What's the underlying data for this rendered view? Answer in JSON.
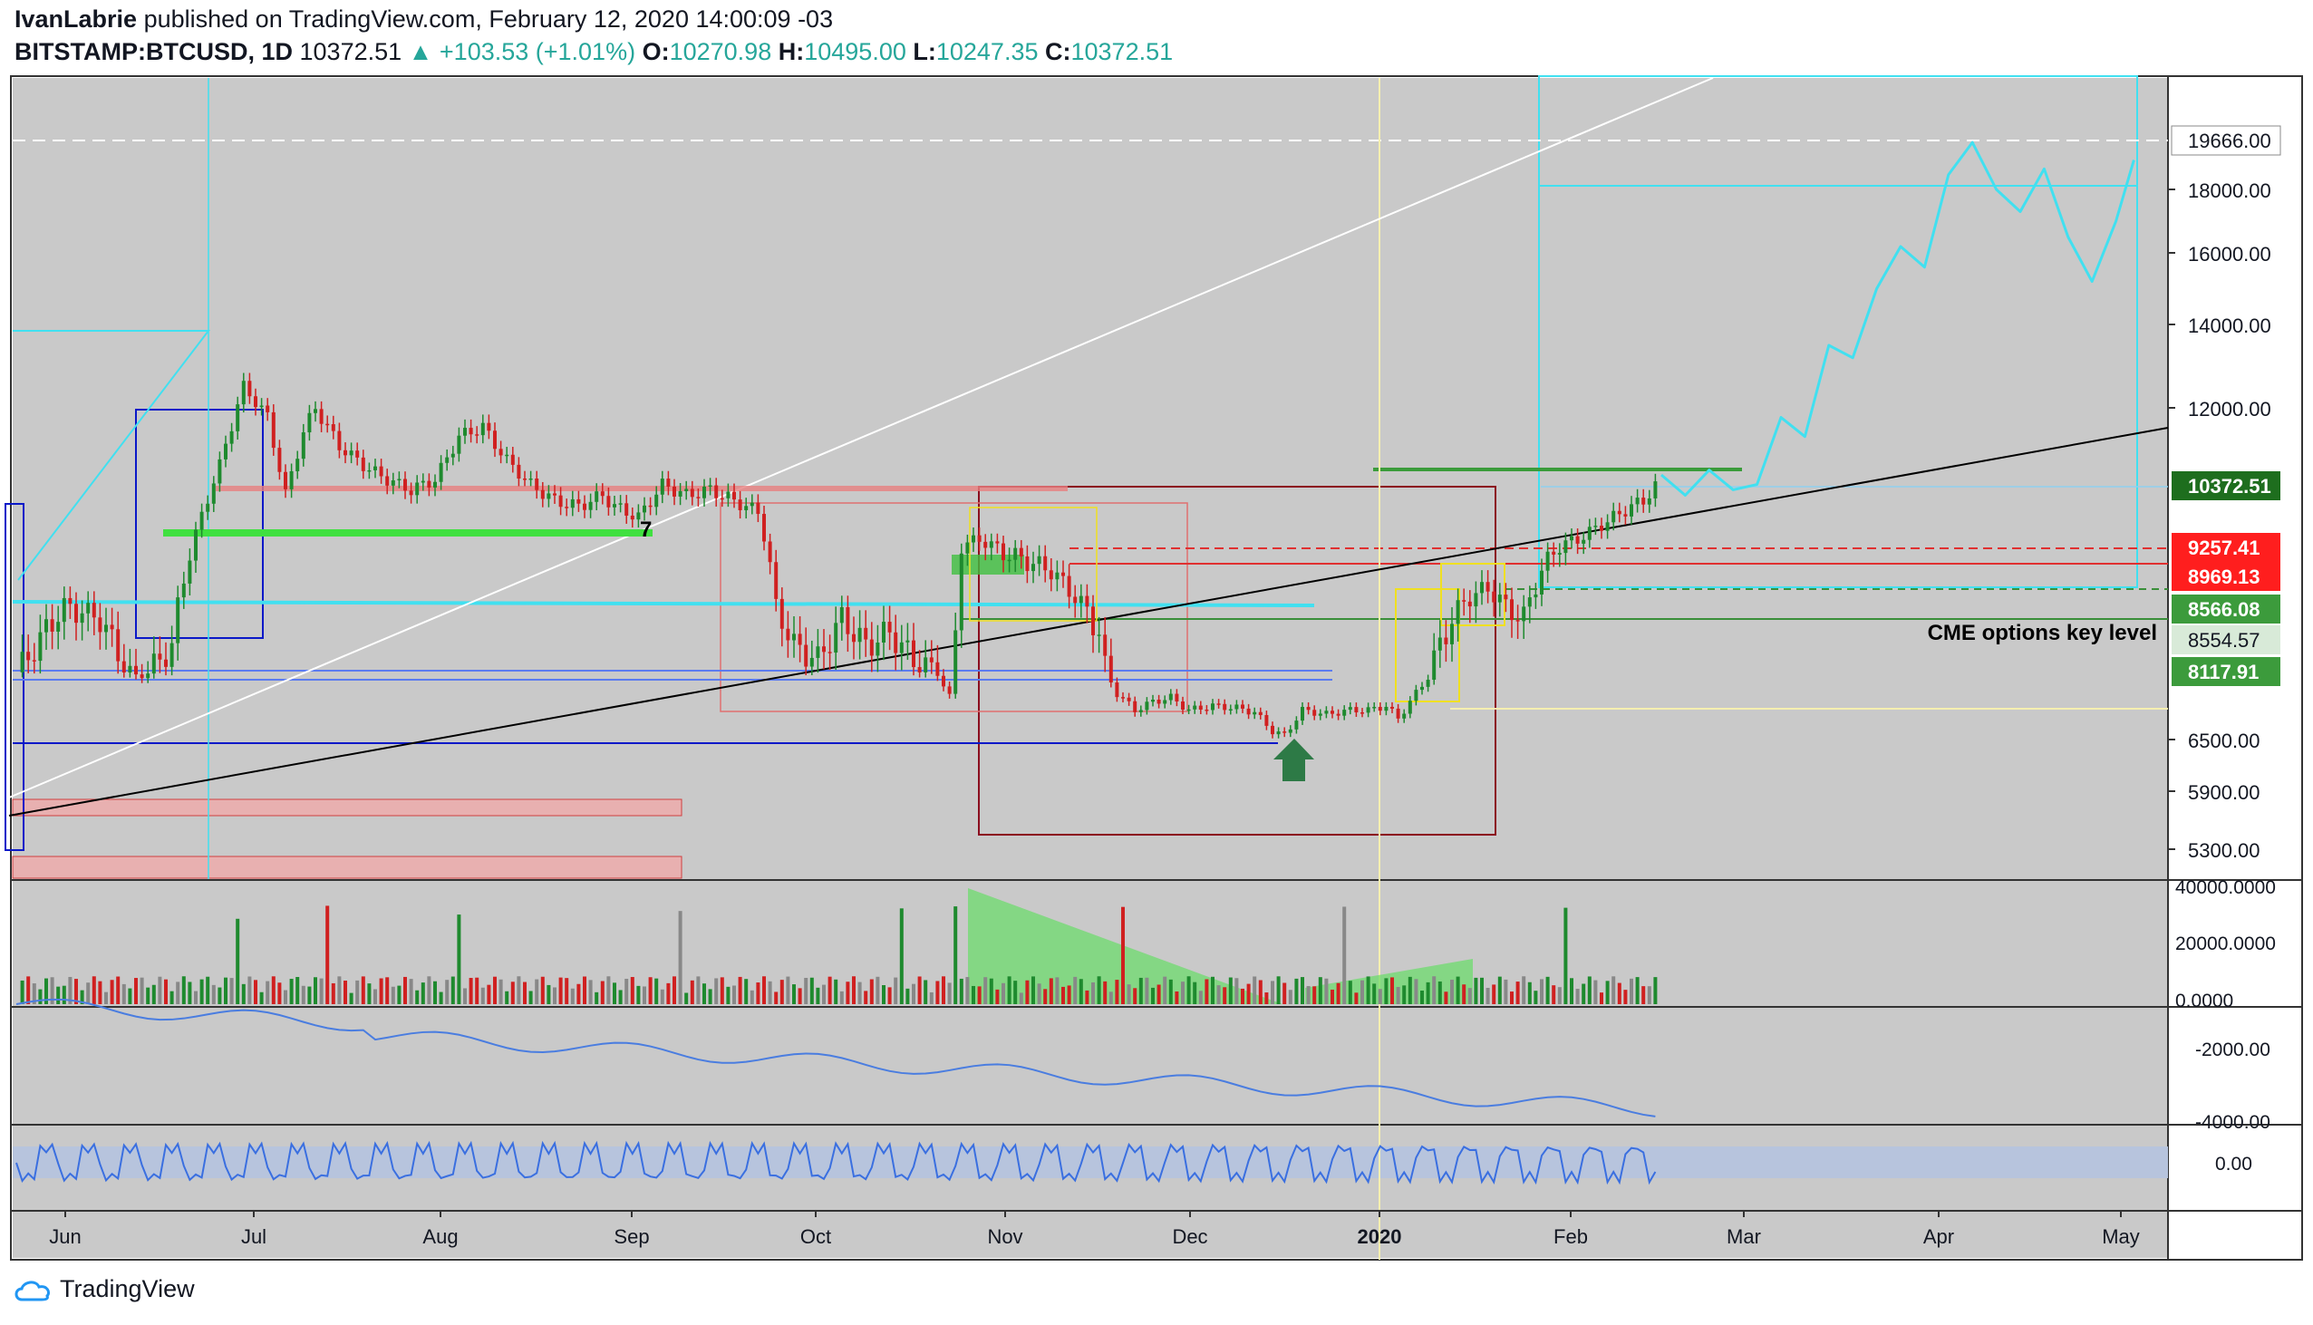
{
  "header": {
    "author": "IvanLabrie",
    "published_text": "published on TradingView.com, February 12, 2020 14:00:09 -03",
    "symbol": "BITSTAMP:BTCUSD, 1D",
    "last": "10372.51",
    "change_arrow": "▲",
    "change": "+103.53 (+1.01%)",
    "open_label": "O:",
    "open": "10270.98",
    "high_label": "H:",
    "high": "10495.00",
    "low_label": "L:",
    "low": "10247.35",
    "close_label": "C:",
    "close": "10372.51"
  },
  "footer": {
    "brand": "TradingView"
  },
  "colors": {
    "background": "#c9c9c9",
    "up": "#26a69a",
    "down": "#ef5350",
    "cyan": "#41e0f0",
    "green_label": "#3c9b3c",
    "red_label": "#ff1e1e",
    "blue": "#0a18c8"
  },
  "chart_data": {
    "type": "candlestick",
    "interval": "1D",
    "price_axis_ticks": [
      "18000.00",
      "16000.00",
      "14000.00",
      "12000.00",
      "6500.00",
      "5900.00",
      "5300.00"
    ],
    "price_axis_labels": [
      {
        "text": "19666.00",
        "style": "outline"
      },
      {
        "text": "10372.51",
        "style": "dark-green"
      },
      {
        "text": "9257.41",
        "style": "red"
      },
      {
        "text": "8969.13",
        "style": "red"
      },
      {
        "text": "8566.08",
        "style": "green"
      },
      {
        "text": "8554.57",
        "style": "light"
      },
      {
        "text": "8117.91",
        "style": "green"
      }
    ],
    "annotation": "CME options key level",
    "pattern_label": "7",
    "volume_ticks": [
      "40000.0000",
      "20000.0000",
      "0.0000"
    ],
    "osc1_ticks": [
      "-2000.00",
      "-4000.00"
    ],
    "osc2_ticks": [
      "0.00"
    ],
    "time_labels": [
      {
        "text": "Jun",
        "bold": false
      },
      {
        "text": "Jul",
        "bold": false
      },
      {
        "text": "Aug",
        "bold": false
      },
      {
        "text": "Sep",
        "bold": false
      },
      {
        "text": "Oct",
        "bold": false
      },
      {
        "text": "Nov",
        "bold": false
      },
      {
        "text": "Dec",
        "bold": false
      },
      {
        "text": "2020",
        "bold": true
      },
      {
        "text": "Feb",
        "bold": false
      },
      {
        "text": "Mar",
        "bold": false
      },
      {
        "text": "Apr",
        "bold": false
      },
      {
        "text": "May",
        "bold": false
      }
    ],
    "price_path": [
      [
        0,
        8100
      ],
      [
        8,
        8600
      ],
      [
        14,
        8500
      ],
      [
        20,
        8000
      ],
      [
        26,
        8300
      ],
      [
        30,
        9500
      ],
      [
        34,
        10800
      ],
      [
        38,
        12500
      ],
      [
        42,
        11800
      ],
      [
        45,
        10200
      ],
      [
        48,
        11500
      ],
      [
        50,
        12000
      ],
      [
        54,
        11200
      ],
      [
        58,
        10800
      ],
      [
        62,
        10500
      ],
      [
        66,
        10300
      ],
      [
        70,
        10500
      ],
      [
        74,
        11400
      ],
      [
        78,
        11600
      ],
      [
        82,
        10900
      ],
      [
        86,
        10400
      ],
      [
        90,
        10100
      ],
      [
        94,
        10000
      ],
      [
        98,
        10200
      ],
      [
        100,
        10000
      ],
      [
        104,
        9800
      ],
      [
        108,
        10400
      ],
      [
        112,
        10200
      ],
      [
        116,
        10300
      ],
      [
        120,
        10100
      ],
      [
        124,
        9900
      ],
      [
        127,
        8600
      ],
      [
        130,
        8300
      ],
      [
        134,
        8200
      ],
      [
        138,
        8500
      ],
      [
        142,
        8300
      ],
      [
        146,
        8400
      ],
      [
        150,
        8200
      ],
      [
        154,
        8100
      ],
      [
        156,
        7500
      ],
      [
        158,
        9300
      ],
      [
        161,
        9400
      ],
      [
        165,
        9200
      ],
      [
        169,
        9100
      ],
      [
        173,
        9000
      ],
      [
        177,
        8700
      ],
      [
        181,
        8400
      ],
      [
        184,
        7600
      ],
      [
        187,
        7200
      ],
      [
        190,
        7400
      ],
      [
        193,
        7500
      ],
      [
        196,
        7200
      ],
      [
        200,
        7300
      ],
      [
        204,
        7250
      ],
      [
        207,
        7150
      ],
      [
        210,
        6700
      ],
      [
        212,
        6600
      ],
      [
        215,
        7200
      ],
      [
        219,
        7100
      ],
      [
        223,
        7200
      ],
      [
        226,
        7200
      ],
      [
        229,
        7300
      ],
      [
        231,
        7000
      ],
      [
        234,
        7600
      ],
      [
        237,
        8200
      ],
      [
        240,
        8500
      ],
      [
        243,
        8700
      ],
      [
        246,
        8800
      ],
      [
        249,
        8600
      ],
      [
        252,
        8500
      ],
      [
        255,
        9000
      ],
      [
        258,
        9300
      ],
      [
        261,
        9400
      ],
      [
        264,
        9600
      ],
      [
        267,
        9800
      ],
      [
        270,
        10000
      ],
      [
        272,
        10100
      ],
      [
        274,
        10372.51
      ]
    ],
    "projection_path": [
      [
        275,
        10600
      ],
      [
        279,
        10200
      ],
      [
        283,
        10700
      ],
      [
        287,
        10300
      ],
      [
        291,
        10400
      ],
      [
        295,
        11800
      ],
      [
        299,
        11400
      ],
      [
        303,
        13500
      ],
      [
        307,
        13200
      ],
      [
        311,
        15000
      ],
      [
        315,
        16200
      ],
      [
        319,
        15600
      ],
      [
        323,
        18500
      ],
      [
        327,
        19600
      ],
      [
        331,
        18000
      ],
      [
        335,
        17300
      ],
      [
        339,
        18700
      ],
      [
        343,
        16500
      ],
      [
        347,
        15200
      ],
      [
        351,
        17000
      ],
      [
        354,
        19000
      ]
    ],
    "volume_notes": "daily volume histogram, peaks near 40000 in late Jun and late Oct",
    "oscillator_notes": "OBV-style line declining to about -3500; RSI-style oscillator around 0"
  }
}
